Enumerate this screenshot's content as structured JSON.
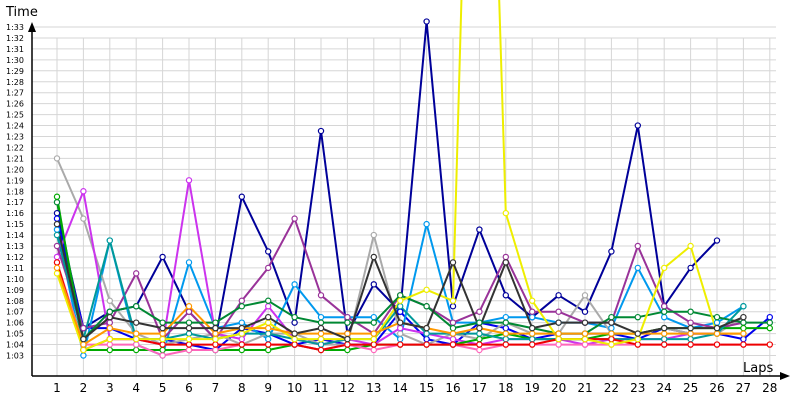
{
  "chart_data": {
    "type": "line",
    "ylabel": "Time",
    "xlabel": "Laps",
    "ylim": [
      61,
      154
    ],
    "y_ticks": [
      "1:03",
      "1:04",
      "1:05",
      "1:06",
      "1:07",
      "1:08",
      "1:09",
      "1:10",
      "1:11",
      "1:12",
      "1:13",
      "1:14",
      "1:15",
      "1:16",
      "1:17",
      "1:18",
      "1:19",
      "1:20",
      "1:21",
      "1:22",
      "1:23",
      "1:24",
      "1:25",
      "1:26",
      "1:27",
      "1:28",
      "1:29",
      "1:30",
      "1:31",
      "1:32",
      "1:33"
    ],
    "x": [
      1,
      2,
      3,
      4,
      5,
      6,
      7,
      8,
      9,
      10,
      11,
      12,
      13,
      14,
      15,
      16,
      17,
      18,
      19,
      20,
      21,
      22,
      23,
      24,
      25,
      26,
      27,
      28
    ],
    "grid": true,
    "series": [
      {
        "color": "#000099",
        "values": [
          76,
          65.5,
          67,
          67.5,
          72,
          67,
          64.5,
          77.5,
          72.5,
          66,
          83.5,
          65,
          69.5,
          67,
          93.5,
          67.5,
          74.5,
          68.5,
          66.5,
          68.5,
          67,
          72.5,
          84,
          67.5,
          71,
          73.5,
          null,
          null
        ]
      },
      {
        "color": "#0000ee",
        "values": [
          75.5,
          65.5,
          65.5,
          64.5,
          64.5,
          64,
          63.5,
          65.5,
          65,
          64,
          64.5,
          64,
          64,
          67,
          64.5,
          64,
          66,
          65.5,
          64.5,
          65,
          65,
          65,
          64.5,
          65.5,
          65,
          65,
          64.5,
          66.5
        ]
      },
      {
        "color": "#0099ee",
        "values": [
          74.5,
          63,
          73.5,
          64,
          63,
          71.5,
          65.5,
          66,
          64.5,
          69.5,
          66.5,
          66.5,
          66.5,
          64.5,
          75,
          66,
          66,
          66.5,
          66.5,
          66,
          66,
          65.5,
          71,
          66.5,
          65.5,
          66,
          67.5,
          null
        ]
      },
      {
        "color": "#aaaaaa",
        "values": [
          81,
          75.5,
          68,
          65,
          64,
          64.5,
          65,
          64,
          65,
          65,
          64,
          64,
          74,
          65,
          64,
          65,
          64.5,
          66,
          65,
          65,
          68.5,
          65,
          65,
          65.5,
          65,
          65,
          66.5,
          null
        ]
      },
      {
        "color": "#cc33ee",
        "values": [
          72,
          78,
          64.5,
          64.5,
          64,
          79,
          65,
          64.5,
          67.5,
          64.5,
          64,
          64.5,
          64,
          65.5,
          65,
          64.5,
          64,
          64.5,
          64.5,
          64.5,
          64,
          64.5,
          64.5,
          64.5,
          65,
          65,
          65,
          null
        ]
      },
      {
        "color": "#993399",
        "values": [
          73,
          65.5,
          66,
          70.5,
          64.5,
          67,
          64.5,
          68,
          71,
          75.5,
          68.5,
          66.5,
          65,
          68.5,
          67.5,
          66,
          67,
          72,
          67,
          67,
          66,
          66,
          73,
          67.5,
          66,
          65.5,
          66,
          null
        ]
      },
      {
        "color": "#008833",
        "values": [
          77,
          64.5,
          67,
          67.5,
          66,
          66,
          66,
          67.5,
          68,
          66.5,
          66,
          66,
          66,
          68.5,
          67.5,
          65.5,
          66,
          66,
          65.5,
          65,
          65,
          66.5,
          66.5,
          67,
          67,
          66.5,
          66,
          66
        ]
      },
      {
        "color": "#00aa00",
        "values": [
          77.5,
          63.5,
          63.5,
          63.5,
          63.5,
          63.5,
          63.5,
          63.5,
          63.5,
          64,
          63.5,
          63.5,
          64,
          64,
          64,
          64,
          64.5,
          65,
          64.5,
          64.5,
          64.5,
          65,
          65,
          65.5,
          65.5,
          65.5,
          65.5,
          65.5
        ]
      },
      {
        "color": "#009999",
        "values": [
          74,
          64.5,
          73.5,
          64.5,
          64.5,
          65,
          64.5,
          65,
          65,
          64.5,
          64,
          64.5,
          64.5,
          67.5,
          65,
          65,
          65,
          64.5,
          64.5,
          64.5,
          64.5,
          64.5,
          64.5,
          64.5,
          64.5,
          65,
          67.5,
          null
        ]
      },
      {
        "color": "#ff66bb",
        "values": [
          71.5,
          64,
          64,
          64,
          63,
          63.5,
          63.5,
          64,
          64,
          64,
          63.5,
          64,
          63.5,
          64,
          64,
          64,
          63.5,
          64,
          64,
          64,
          64,
          64,
          64,
          64,
          64,
          64,
          64,
          null
        ]
      },
      {
        "color": "#ee0000",
        "values": [
          71.5,
          63.5,
          64.5,
          64.5,
          64,
          64,
          64,
          64,
          64,
          64,
          63.5,
          64,
          64,
          64,
          64,
          64,
          64,
          64,
          64,
          64.5,
          64.5,
          64.5,
          64,
          64,
          64,
          64,
          64,
          64
        ]
      },
      {
        "color": "#eeee00",
        "values": [
          70.5,
          63.5,
          64.5,
          64.5,
          64.5,
          64.5,
          64.5,
          65,
          66,
          64.5,
          64.5,
          64.5,
          64.5,
          68,
          69,
          68,
          154,
          76,
          68,
          64.5,
          64.5,
          64,
          64.5,
          71,
          73,
          65,
          65,
          null
        ]
      },
      {
        "color": "#ff9900",
        "values": [
          71,
          64,
          65.5,
          65,
          65,
          67.5,
          65,
          65.5,
          65.5,
          65,
          65,
          65,
          65,
          66,
          65.5,
          65,
          65.5,
          65,
          65,
          65,
          65,
          65,
          65,
          65,
          65,
          65,
          65,
          null
        ]
      },
      {
        "color": "#333333",
        "values": [
          75,
          64.5,
          66.5,
          66,
          65.5,
          65.5,
          65.5,
          65.5,
          66.5,
          65,
          65.5,
          64.5,
          72,
          66,
          65.5,
          71.5,
          65.5,
          71.5,
          65.5,
          66,
          66,
          66,
          65,
          65.5,
          65.5,
          65.5,
          66.5,
          null
        ]
      }
    ]
  }
}
